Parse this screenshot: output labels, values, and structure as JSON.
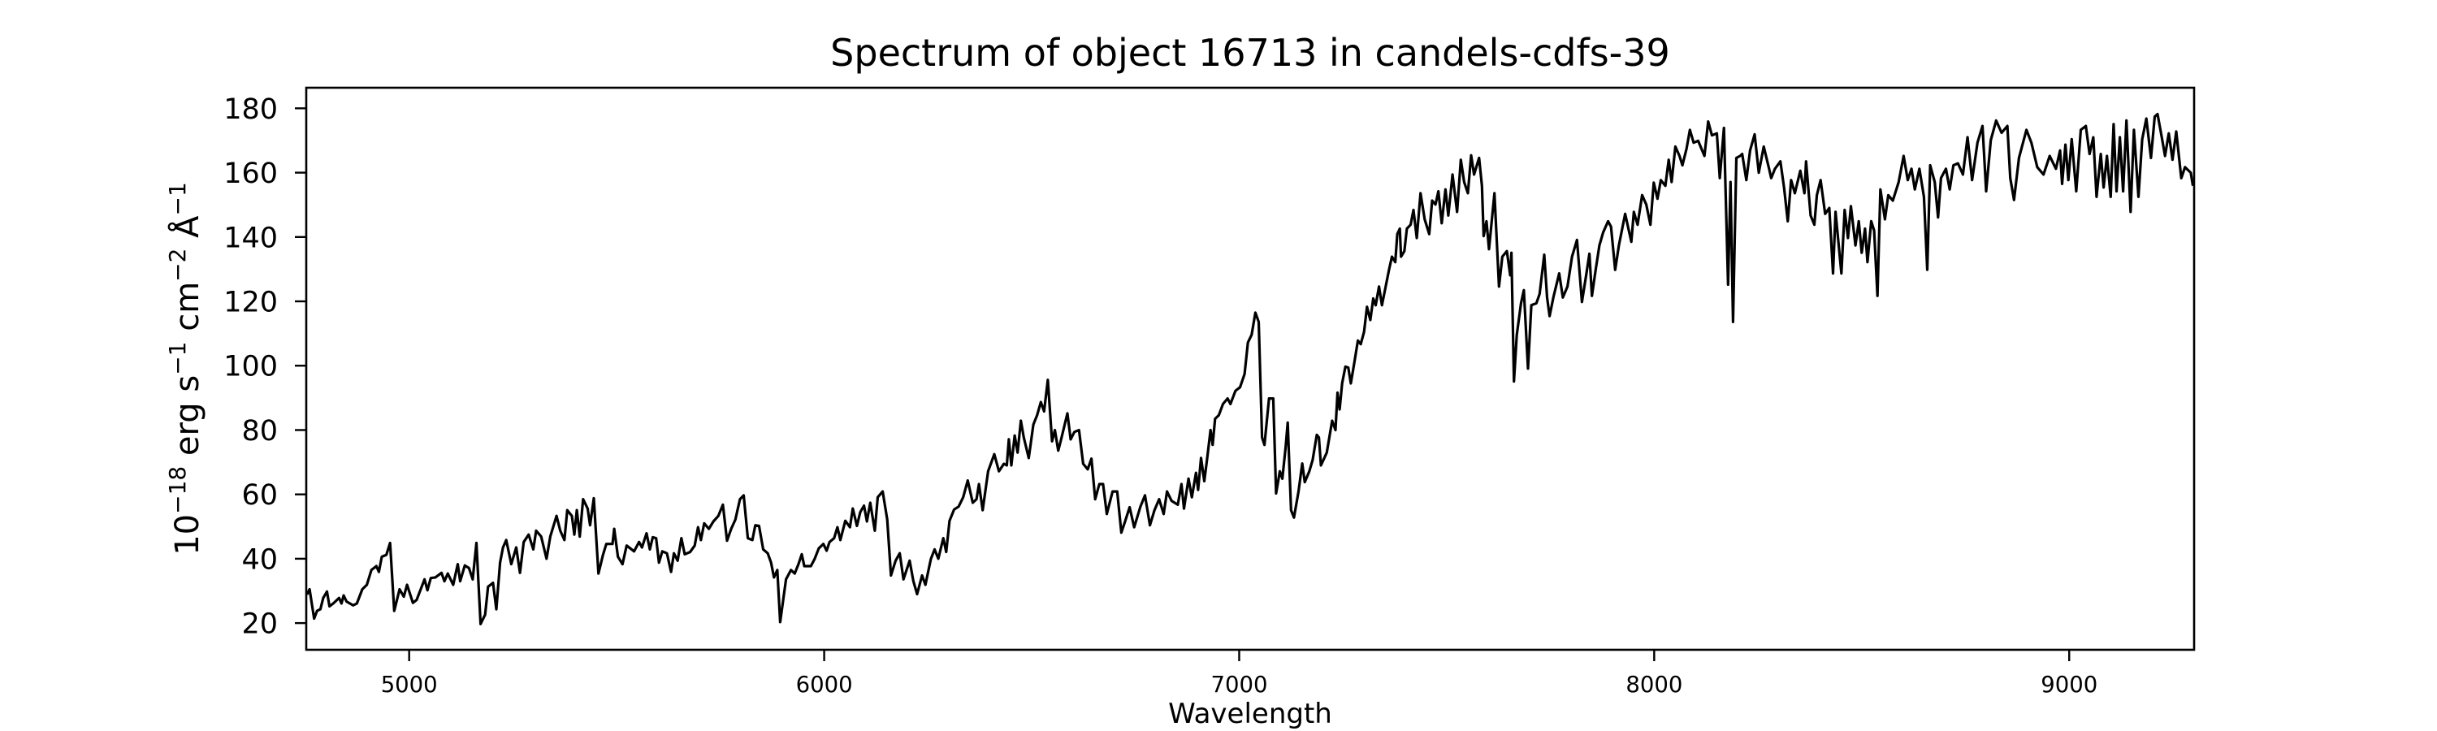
{
  "chart_data": {
    "type": "line",
    "title": "Spectrum of object 16713 in candels-cdfs-39",
    "xlabel": "Wavelength",
    "ylabel_parts": [
      {
        "text": "10",
        "sup": false
      },
      {
        "text": "−18",
        "sup": true
      },
      {
        "text": " erg s",
        "sup": false
      },
      {
        "text": "−1",
        "sup": true
      },
      {
        "text": " cm",
        "sup": false
      },
      {
        "text": "−2",
        "sup": true
      },
      {
        "text": " Å",
        "sup": false
      },
      {
        "text": "−1",
        "sup": true
      }
    ],
    "xlim": [
      4752,
      9301
    ],
    "ylim": [
      11.7,
      186.4
    ],
    "xticks": [
      5000,
      6000,
      7000,
      8000,
      9000
    ],
    "xtick_labels": [
      "5000",
      "6000",
      "7000",
      "8000",
      "9000"
    ],
    "yticks": [
      20,
      40,
      60,
      80,
      100,
      120,
      140,
      160,
      180
    ],
    "ytick_labels": [
      "20",
      "40",
      "60",
      "80",
      "100",
      "120",
      "140",
      "160",
      "180"
    ],
    "grid": false,
    "line_color": "#000000",
    "series": [
      {
        "x": [
          4754,
          4760,
          4771,
          4778,
          4786,
          4793,
          4802,
          4808,
          4817,
          4831,
          4837,
          4842,
          4849,
          4865,
          4874,
          4887,
          4898,
          4909,
          4921,
          4927,
          4934,
          4945,
          4954,
          4964,
          4977,
          4987,
          4995,
          5009,
          5018,
          5037,
          5044,
          5052,
          5063,
          5078,
          5085,
          5093,
          5106,
          5117,
          5123,
          5134,
          5144,
          5153,
          5162,
          5172,
          5183,
          5190,
          5202,
          5210,
          5219,
          5226,
          5234,
          5246,
          5258,
          5267,
          5276,
          5288,
          5299,
          5306,
          5318,
          5331,
          5340,
          5355,
          5364,
          5374,
          5381,
          5392,
          5398,
          5404,
          5411,
          5419,
          5430,
          5436,
          5445,
          5456,
          5467,
          5475,
          5490,
          5494,
          5503,
          5514,
          5524,
          5542,
          5554,
          5561,
          5572,
          5580,
          5587,
          5595,
          5602,
          5610,
          5621,
          5631,
          5638,
          5647,
          5656,
          5664,
          5677,
          5688,
          5696,
          5703,
          5711,
          5722,
          5733,
          5745,
          5756,
          5766,
          5776,
          5786,
          5797,
          5806,
          5816,
          5827,
          5834,
          5843,
          5853,
          5864,
          5872,
          5879,
          5887,
          5894,
          5908,
          5920,
          5929,
          5938,
          5946,
          5952,
          5968,
          5977,
          5987,
          5998,
          6006,
          6013,
          6024,
          6032,
          6039,
          6051,
          6062,
          6069,
          6079,
          6087,
          6096,
          6103,
          6111,
          6122,
          6129,
          6141,
          6152,
          6161,
          6172,
          6182,
          6191,
          6206,
          6215,
          6224,
          6236,
          6244,
          6257,
          6266,
          6275,
          6287,
          6294,
          6302,
          6313,
          6324,
          6335,
          6346,
          6358,
          6367,
          6373,
          6382,
          6395,
          6410,
          6421,
          6433,
          6440,
          6445,
          6451,
          6459,
          6466,
          6474,
          6481,
          6493,
          6504,
          6513,
          6522,
          6530,
          6539,
          6549,
          6556,
          6564,
          6571,
          6586,
          6594,
          6603,
          6614,
          6624,
          6635,
          6644,
          6653,
          6663,
          6672,
          6681,
          6695,
          6706,
          6716,
          6725,
          6736,
          6747,
          6762,
          6773,
          6785,
          6796,
          6807,
          6818,
          6826,
          6837,
          6852,
          6861,
          6867,
          6878,
          6886,
          6896,
          6901,
          6908,
          6916,
          6923,
          6931,
          6936,
          6942,
          6951,
          6961,
          6972,
          6979,
          6991,
          7002,
          7013,
          7021,
          7030,
          7039,
          7047,
          7055,
          7061,
          7072,
          7082,
          7089,
          7098,
          7104,
          7112,
          7117,
          7125,
          7132,
          7143,
          7152,
          7158,
          7169,
          7177,
          7187,
          7192,
          7197,
          7211,
          7224,
          7232,
          7237,
          7242,
          7248,
          7256,
          7263,
          7269,
          7278,
          7286,
          7293,
          7301,
          7308,
          7316,
          7323,
          7329,
          7337,
          7344,
          7353,
          7361,
          7368,
          7376,
          7381,
          7387,
          7390,
          7398,
          7404,
          7413,
          7420,
          7428,
          7437,
          7447,
          7458,
          7465,
          7473,
          7480,
          7488,
          7497,
          7504,
          7514,
          7525,
          7534,
          7542,
          7551,
          7559,
          7566,
          7578,
          7585,
          7589,
          7596,
          7602,
          7608,
          7615,
          7626,
          7634,
          7645,
          7653,
          7656,
          7662,
          7669,
          7679,
          7686,
          7696,
          7704,
          7716,
          7724,
          7735,
          7742,
          7748,
          7757,
          7771,
          7780,
          7791,
          7802,
          7814,
          7826,
          7836,
          7844,
          7850,
          7859,
          7868,
          7877,
          7889,
          7896,
          7906,
          7915,
          7930,
          7945,
          7951,
          7960,
          7971,
          7981,
          7991,
          7999,
          8008,
          8016,
          8027,
          8035,
          8042,
          8051,
          8061,
          8068,
          8078,
          8086,
          8095,
          8106,
          8121,
          8130,
          8139,
          8151,
          8158,
          8168,
          8178,
          8184,
          8190,
          8198,
          8207,
          8212,
          8222,
          8231,
          8242,
          8252,
          8264,
          8276,
          8282,
          8291,
          8304,
          8313,
          8322,
          8330,
          8339,
          8352,
          8362,
          8366,
          8377,
          8386,
          8392,
          8401,
          8412,
          8422,
          8431,
          8437,
          8451,
          8459,
          8467,
          8474,
          8485,
          8493,
          8500,
          8508,
          8514,
          8523,
          8530,
          8538,
          8545,
          8556,
          8564,
          8575,
          8589,
          8601,
          8611,
          8620,
          8628,
          8639,
          8650,
          8658,
          8665,
          8676,
          8684,
          8691,
          8703,
          8712,
          8721,
          8732,
          8744,
          8755,
          8766,
          8779,
          8791,
          8800,
          8811,
          8824,
          8837,
          8851,
          8858,
          8867,
          8879,
          8897,
          8909,
          8923,
          8938,
          8953,
          8968,
          8978,
          8983,
          8991,
          8998,
          9006,
          9017,
          9028,
          9040,
          9049,
          9058,
          9066,
          9076,
          9083,
          9091,
          9100,
          9107,
          9114,
          9122,
          9130,
          9138,
          9148,
          9156,
          9167,
          9176,
          9186,
          9197,
          9206,
          9213,
          9223,
          9231,
          9240,
          9249,
          9258,
          9270,
          9279,
          9293,
          9298
        ],
        "y": [
          28.9,
          30.5,
          21.4,
          23.8,
          24.3,
          27.8,
          29.8,
          25.2,
          26.1,
          27.8,
          26.1,
          28.6,
          26.7,
          25.5,
          26.1,
          30.5,
          31.9,
          36.5,
          37.7,
          35.9,
          40.6,
          41.2,
          44.9,
          23.8,
          30.5,
          28.2,
          31.9,
          26.3,
          27.2,
          33.6,
          30.2,
          34.0,
          34.2,
          35.6,
          33.0,
          35.4,
          31.9,
          38.3,
          33.0,
          37.9,
          37.1,
          33.6,
          44.9,
          19.7,
          22.6,
          31.3,
          32.5,
          24.3,
          38.8,
          43.5,
          45.8,
          38.3,
          43.5,
          35.6,
          45.2,
          47.5,
          42.9,
          48.7,
          46.9,
          40.0,
          46.9,
          53.3,
          48.7,
          45.8,
          55.1,
          53.3,
          47.5,
          55.1,
          46.9,
          58.5,
          55.6,
          50.4,
          58.8,
          35.4,
          41.2,
          44.6,
          44.6,
          49.3,
          40.6,
          38.3,
          44.1,
          42.3,
          45.2,
          43.5,
          47.9,
          42.9,
          46.7,
          46.4,
          38.8,
          42.3,
          41.7,
          35.9,
          41.7,
          39.4,
          46.4,
          41.4,
          42.1,
          44.1,
          49.8,
          45.8,
          51.0,
          49.3,
          51.6,
          53.3,
          56.8,
          45.6,
          49.3,
          52.2,
          58.5,
          59.7,
          46.4,
          45.8,
          50.4,
          50.2,
          42.9,
          41.7,
          38.8,
          34.2,
          36.5,
          20.3,
          33.6,
          36.5,
          35.4,
          38.3,
          41.4,
          37.7,
          37.7,
          39.9,
          43.2,
          44.6,
          42.5,
          45.2,
          46.4,
          49.8,
          45.8,
          51.8,
          49.8,
          55.6,
          50.2,
          54.5,
          56.5,
          51.6,
          57.4,
          48.7,
          59.1,
          60.9,
          52.2,
          34.8,
          39.4,
          41.7,
          33.6,
          39.4,
          33.0,
          29.0,
          34.8,
          31.9,
          39.9,
          42.9,
          40.0,
          46.4,
          42.1,
          51.8,
          55.3,
          56.2,
          59.1,
          64.3,
          57.4,
          58.5,
          63.2,
          55.1,
          67.2,
          72.5,
          67.2,
          69.5,
          69.0,
          77.1,
          69.0,
          78.3,
          73.0,
          82.9,
          77.7,
          71.3,
          81.7,
          84.6,
          88.7,
          85.8,
          95.6,
          76.5,
          80.0,
          73.6,
          77.1,
          85.2,
          77.1,
          79.4,
          80.0,
          69.5,
          67.8,
          71.1,
          58.5,
          63.2,
          63.2,
          53.9,
          60.9,
          60.9,
          48.1,
          51.6,
          56.0,
          49.8,
          56.2,
          59.7,
          50.4,
          55.1,
          58.5,
          53.9,
          60.9,
          58.0,
          56.8,
          63.2,
          55.6,
          64.9,
          59.1,
          66.7,
          61.4,
          71.3,
          64.1,
          71.3,
          80.0,
          75.4,
          83.5,
          84.6,
          88.1,
          89.8,
          88.1,
          92.2,
          93.3,
          97.4,
          107.2,
          109.6,
          116.5,
          113.6,
          77.7,
          75.4,
          89.8,
          89.8,
          60.3,
          67.2,
          64.9,
          74.8,
          82.3,
          55.1,
          52.8,
          60.9,
          69.6,
          63.8,
          67.2,
          70.7,
          78.5,
          77.7,
          69.0,
          73.0,
          82.9,
          80.0,
          91.6,
          86.4,
          94.5,
          99.7,
          99.4,
          94.5,
          101.4,
          107.8,
          106.7,
          110.5,
          118.3,
          114.2,
          120.9,
          118.8,
          124.6,
          118.8,
          124.6,
          129.8,
          133.9,
          132.2,
          140.9,
          142.6,
          133.9,
          135.6,
          142.6,
          143.8,
          148.4,
          139.7,
          153.6,
          145.5,
          140.9,
          151.3,
          150.1,
          154.2,
          144.3,
          154.8,
          146.7,
          159.4,
          147.8,
          164.0,
          157.1,
          153.6,
          165.4,
          159.4,
          164.6,
          155.9,
          140.3,
          144.9,
          136.2,
          144.3,
          153.6,
          124.6,
          133.9,
          135.6,
          128.1,
          135.1,
          95.1,
          109.6,
          119.4,
          123.5,
          99.1,
          118.8,
          119.4,
          122.3,
          134.5,
          121.2,
          115.4,
          121.2,
          128.7,
          121.2,
          124.6,
          133.9,
          139.1,
          119.8,
          128.1,
          134.8,
          121.7,
          129.8,
          137.4,
          141.4,
          144.9,
          143.2,
          129.8,
          137.4,
          147.2,
          138.5,
          147.8,
          143.8,
          153.0,
          150.1,
          143.8,
          156.9,
          151.9,
          157.7,
          155.9,
          164.0,
          157.1,
          168.1,
          165.2,
          162.3,
          167.5,
          173.3,
          169.3,
          169.9,
          165.2,
          175.9,
          171.6,
          172.2,
          158.3,
          173.9,
          125.2,
          157.1,
          113.6,
          164.6,
          165.2,
          165.8,
          157.7,
          166.9,
          171.9,
          160.0,
          168.1,
          161.7,
          158.3,
          161.2,
          163.5,
          155.4,
          144.9,
          157.7,
          153.6,
          160.6,
          153.6,
          163.5,
          146.7,
          143.8,
          153.0,
          157.7,
          147.2,
          149.0,
          128.7,
          147.8,
          128.7,
          148.4,
          139.7,
          149.6,
          137.4,
          144.9,
          135.1,
          142.6,
          132.2,
          144.9,
          142.0,
          121.7,
          154.8,
          145.5,
          153.0,
          151.3,
          157.1,
          165.2,
          157.7,
          161.2,
          154.8,
          161.2,
          152.5,
          129.8,
          162.3,
          157.1,
          146.1,
          158.3,
          161.2,
          154.8,
          162.3,
          162.9,
          159.4,
          171.0,
          157.7,
          169.3,
          174.5,
          154.2,
          170.1,
          176.2,
          172.4,
          174.5,
          158.3,
          151.5,
          164.6,
          173.3,
          169.3,
          161.7,
          159.4,
          165.2,
          161.2,
          166.9,
          156.5,
          168.7,
          157.7,
          170.4,
          154.2,
          173.3,
          174.5,
          165.8,
          171.0,
          152.5,
          165.8,
          155.4,
          165.2,
          152.5,
          175.1,
          154.2,
          171.0,
          154.2,
          176.2,
          147.8,
          173.3,
          152.5,
          170.4,
          176.8,
          164.6,
          177.4,
          178.2,
          171.0,
          165.2,
          172.2,
          164.0,
          172.8,
          158.3,
          161.7,
          160.0,
          155.9
        ]
      }
    ]
  }
}
